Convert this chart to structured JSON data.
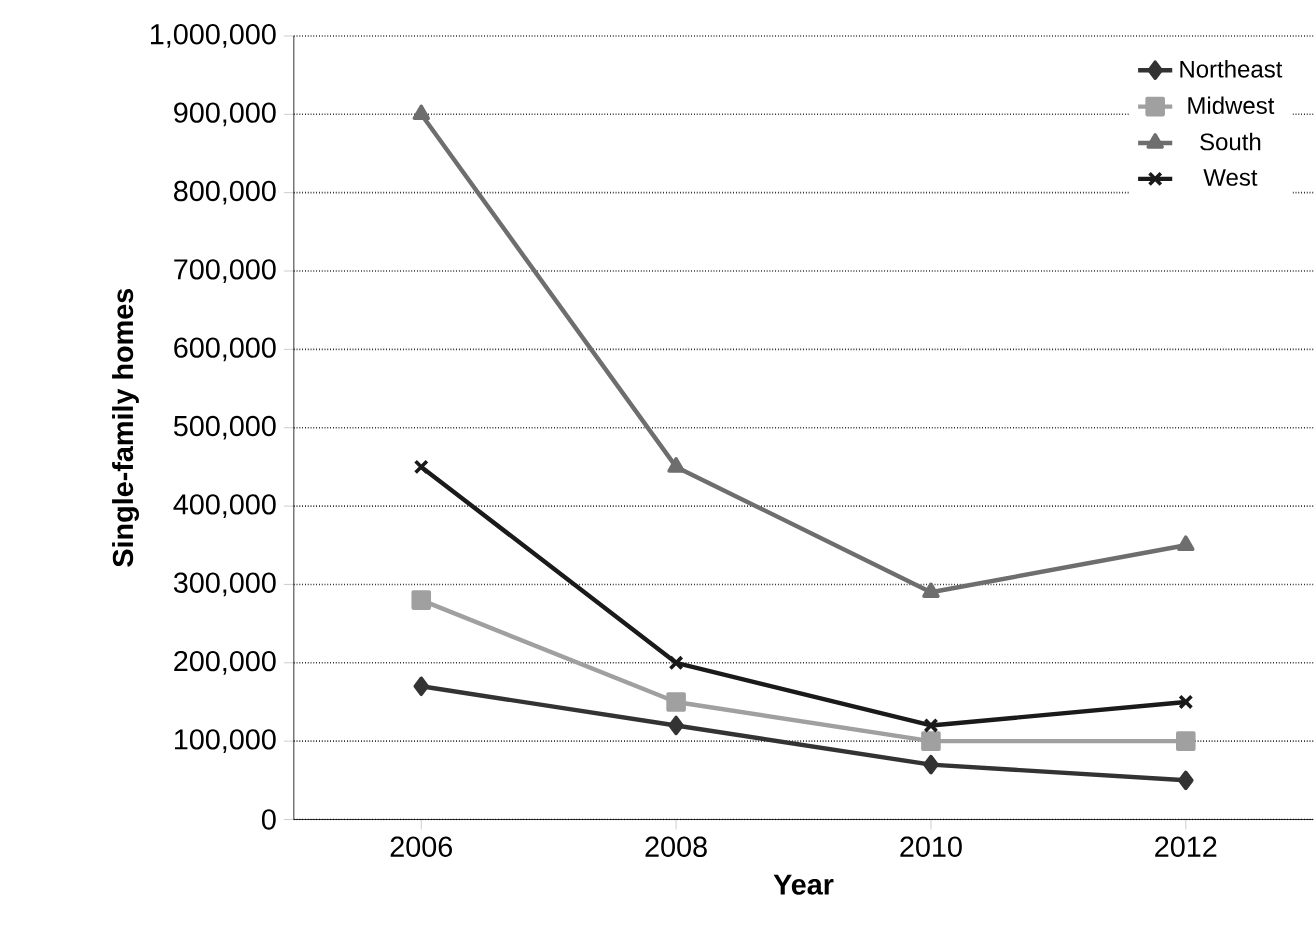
{
  "chart_data": {
    "type": "line",
    "xlabel": "Year",
    "ylabel": "Single-family homes",
    "x": [
      2006,
      2008,
      2010,
      2012
    ],
    "xlim": [
      2005,
      2013
    ],
    "xticks": [
      2006,
      2008,
      2010,
      2012
    ],
    "ylim": [
      0,
      1000000
    ],
    "yticks": [
      {
        "value": 0,
        "label": "0"
      },
      {
        "value": 100000,
        "label": "100,000"
      },
      {
        "value": 200000,
        "label": "200,000"
      },
      {
        "value": 300000,
        "label": "300,000"
      },
      {
        "value": 400000,
        "label": "400,000"
      },
      {
        "value": 500000,
        "label": "500,000"
      },
      {
        "value": 600000,
        "label": "600,000"
      },
      {
        "value": 700000,
        "label": "700,000"
      },
      {
        "value": 800000,
        "label": "800,000"
      },
      {
        "value": 900000,
        "label": "900,000"
      },
      {
        "value": 1000000,
        "label": "1,000,000"
      }
    ],
    "grid": "y",
    "legend": "top right",
    "series": [
      {
        "name": "Northeast",
        "color": "#333333",
        "marker": "diamond",
        "values": [
          170000,
          120000,
          70000,
          50000
        ]
      },
      {
        "name": "Midwest",
        "color": "#a0a0a0",
        "marker": "square",
        "values": [
          280000,
          150000,
          100000,
          100000
        ]
      },
      {
        "name": "South",
        "color": "#6e6e6e",
        "marker": "triangle",
        "values": [
          900000,
          450000,
          290000,
          350000
        ]
      },
      {
        "name": "West",
        "color": "#1a1a1a",
        "marker": "cross",
        "values": [
          450000,
          200000,
          120000,
          150000
        ]
      }
    ]
  }
}
